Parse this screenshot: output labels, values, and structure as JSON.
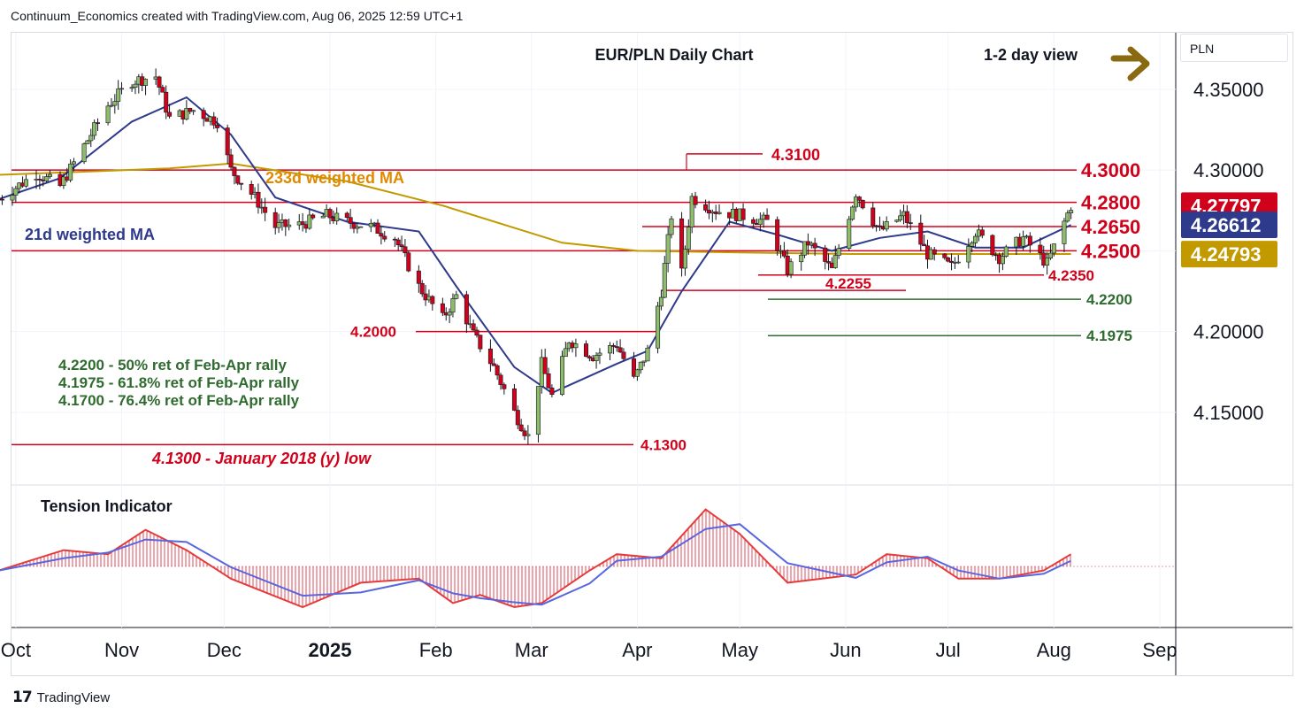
{
  "header": "Continuum_Economics created with TradingView.com, Aug 06, 2025 12:59 UTC+1",
  "footer": {
    "brand": "TradingView"
  },
  "currency_label": "PLN",
  "chart_data": {
    "type": "candlestick",
    "title": "EUR/PLN Daily Chart",
    "view": "1-2 day view",
    "view_arrow": "right-arrow-icon",
    "ylim": [
      4.105,
      4.385
    ],
    "y_ticks": [
      "4.35000",
      "4.30000",
      "4.20000",
      "4.15000"
    ],
    "x_ticks": [
      "Oct",
      "Nov",
      "Dec",
      "2025",
      "Feb",
      "Mar",
      "Apr",
      "May",
      "Jun",
      "Jul",
      "Aug",
      "Sep"
    ],
    "price_badges": [
      {
        "label": "4.27797",
        "value": 4.27797,
        "color": "#d0021b"
      },
      {
        "label": "4.26612",
        "value": 4.26612,
        "color": "#2e3a8c"
      },
      {
        "label": "4.24793",
        "value": 4.24793,
        "color": "#c29a00"
      }
    ],
    "levels": [
      {
        "label": "4.3000",
        "value": 4.3,
        "color": "#d0021b"
      },
      {
        "label": "4.2800",
        "value": 4.28,
        "color": "#d0021b"
      },
      {
        "label": "4.2650",
        "value": 4.265,
        "color": "#d0021b"
      },
      {
        "label": "4.2500",
        "value": 4.25,
        "color": "#d0021b"
      },
      {
        "label": "4.3100",
        "value": 4.31,
        "color": "#d0021b"
      },
      {
        "label": "4.2350",
        "value": 4.235,
        "color": "#d0021b"
      },
      {
        "label": "4.2255",
        "value": 4.2255,
        "color": "#d0021b"
      },
      {
        "label": "4.2200",
        "value": 4.22,
        "color": "#2f6b2f"
      },
      {
        "label": "4.1975",
        "value": 4.1975,
        "color": "#2f6b2f"
      },
      {
        "label": "4.2000",
        "value": 4.2,
        "color": "#d0021b"
      },
      {
        "label": "4.1300",
        "value": 4.13,
        "color": "#d0021b"
      }
    ],
    "annotations": {
      "ma233": "233d weighted MA",
      "ma21": "21d weighted MA",
      "fib": [
        "4.2200 - 50% ret of Feb-Apr rally",
        "4.1975 - 61.8% ret of Feb-Apr rally",
        "4.1700 - 76.4% ret of Feb-Apr rally"
      ],
      "low_note": "4.1300 - January 2018 (y) low"
    },
    "close_path": [
      [
        "2024-09-26",
        4.282
      ],
      [
        "2024-10-07",
        4.298
      ],
      [
        "2024-10-14",
        4.29
      ],
      [
        "2024-10-21",
        4.315
      ],
      [
        "2024-10-28",
        4.34
      ],
      [
        "2024-11-04",
        4.355
      ],
      [
        "2024-11-11",
        4.358
      ],
      [
        "2024-11-15",
        4.332
      ],
      [
        "2024-11-22",
        4.337
      ],
      [
        "2024-11-29",
        4.33
      ],
      [
        "2024-12-03",
        4.3
      ],
      [
        "2024-12-10",
        4.283
      ],
      [
        "2024-12-16",
        4.265
      ],
      [
        "2024-12-23",
        4.266
      ],
      [
        "2024-12-31",
        4.272
      ],
      [
        "2025-01-06",
        4.268
      ],
      [
        "2025-01-13",
        4.265
      ],
      [
        "2025-01-20",
        4.258
      ],
      [
        "2025-01-27",
        4.228
      ],
      [
        "2025-02-03",
        4.208
      ],
      [
        "2025-02-07",
        4.222
      ],
      [
        "2025-02-12",
        4.198
      ],
      [
        "2025-02-18",
        4.178
      ],
      [
        "2025-02-24",
        4.15
      ],
      [
        "2025-02-28",
        4.135
      ],
      [
        "2025-03-04",
        4.18
      ],
      [
        "2025-03-07",
        4.16
      ],
      [
        "2025-03-12",
        4.195
      ],
      [
        "2025-03-19",
        4.185
      ],
      [
        "2025-03-26",
        4.192
      ],
      [
        "2025-03-31",
        4.17
      ],
      [
        "2025-04-04",
        4.188
      ],
      [
        "2025-04-08",
        4.225
      ],
      [
        "2025-04-11",
        4.272
      ],
      [
        "2025-04-14",
        4.236
      ],
      [
        "2025-04-17",
        4.283
      ],
      [
        "2025-04-24",
        4.275
      ],
      [
        "2025-05-01",
        4.272
      ],
      [
        "2025-05-09",
        4.268
      ],
      [
        "2025-05-15",
        4.238
      ],
      [
        "2025-05-21",
        4.255
      ],
      [
        "2025-05-28",
        4.238
      ],
      [
        "2025-06-04",
        4.286
      ],
      [
        "2025-06-11",
        4.262
      ],
      [
        "2025-06-18",
        4.272
      ],
      [
        "2025-06-25",
        4.248
      ],
      [
        "2025-07-02",
        4.24
      ],
      [
        "2025-07-09",
        4.262
      ],
      [
        "2025-07-16",
        4.246
      ],
      [
        "2025-07-23",
        4.258
      ],
      [
        "2025-07-30",
        4.242
      ],
      [
        "2025-08-06",
        4.278
      ]
    ],
    "ma21_path": [
      [
        "2024-09-26",
        4.282
      ],
      [
        "2024-10-14",
        4.295
      ],
      [
        "2024-11-04",
        4.33
      ],
      [
        "2024-11-20",
        4.345
      ],
      [
        "2024-12-03",
        4.322
      ],
      [
        "2024-12-16",
        4.283
      ],
      [
        "2025-01-06",
        4.268
      ],
      [
        "2025-01-27",
        4.262
      ],
      [
        "2025-02-07",
        4.228
      ],
      [
        "2025-02-24",
        4.178
      ],
      [
        "2025-03-07",
        4.162
      ],
      [
        "2025-03-26",
        4.18
      ],
      [
        "2025-04-04",
        4.188
      ],
      [
        "2025-04-14",
        4.225
      ],
      [
        "2025-04-28",
        4.268
      ],
      [
        "2025-05-12",
        4.26
      ],
      [
        "2025-05-28",
        4.25
      ],
      [
        "2025-06-11",
        4.258
      ],
      [
        "2025-06-25",
        4.262
      ],
      [
        "2025-07-09",
        4.252
      ],
      [
        "2025-07-23",
        4.252
      ],
      [
        "2025-08-06",
        4.266
      ]
    ],
    "ma233_path": [
      [
        "2024-09-26",
        4.297
      ],
      [
        "2024-11-15",
        4.301
      ],
      [
        "2024-12-03",
        4.304
      ],
      [
        "2025-01-06",
        4.293
      ],
      [
        "2025-02-03",
        4.278
      ],
      [
        "2025-03-10",
        4.255
      ],
      [
        "2025-04-01",
        4.25
      ],
      [
        "2025-05-01",
        4.249
      ],
      [
        "2025-06-03",
        4.248
      ],
      [
        "2025-07-01",
        4.248
      ],
      [
        "2025-08-06",
        4.248
      ]
    ],
    "tension_indicator": {
      "title": "Tension Indicator",
      "path": [
        [
          "2024-09-26",
          -0.1
        ],
        [
          "2024-10-15",
          0.4
        ],
        [
          "2024-10-28",
          0.3
        ],
        [
          "2024-11-08",
          0.9
        ],
        [
          "2024-11-20",
          0.4
        ],
        [
          "2024-12-03",
          -0.3
        ],
        [
          "2024-12-24",
          -1.0
        ],
        [
          "2025-01-10",
          -0.4
        ],
        [
          "2025-01-27",
          -0.3
        ],
        [
          "2025-02-06",
          -0.9
        ],
        [
          "2025-02-14",
          -0.7
        ],
        [
          "2025-02-24",
          -1.0
        ],
        [
          "2025-03-04",
          -0.9
        ],
        [
          "2025-03-18",
          -0.1
        ],
        [
          "2025-03-26",
          0.3
        ],
        [
          "2025-04-08",
          0.2
        ],
        [
          "2025-04-21",
          1.4
        ],
        [
          "2025-05-01",
          0.8
        ],
        [
          "2025-05-15",
          -0.4
        ],
        [
          "2025-06-04",
          -0.2
        ],
        [
          "2025-06-13",
          0.3
        ],
        [
          "2025-06-25",
          0.2
        ],
        [
          "2025-07-04",
          -0.3
        ],
        [
          "2025-07-16",
          -0.3
        ],
        [
          "2025-07-29",
          -0.1
        ],
        [
          "2025-08-06",
          0.3
        ]
      ]
    }
  }
}
